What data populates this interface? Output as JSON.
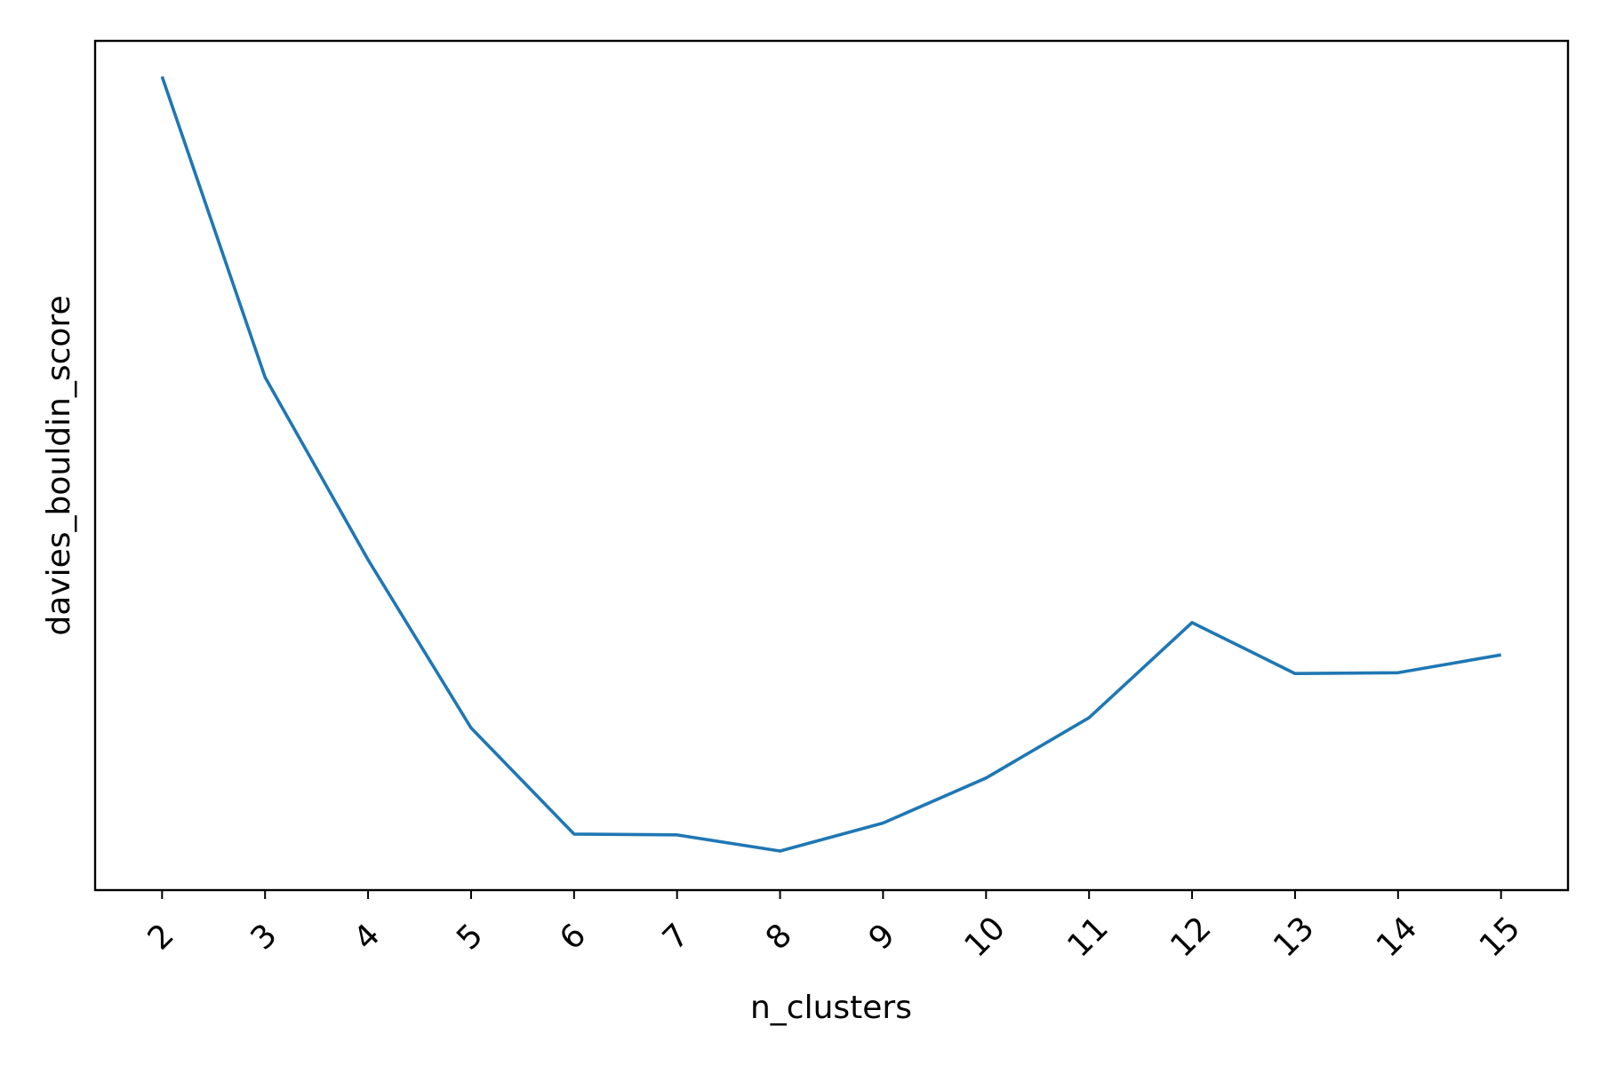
{
  "chart_data": {
    "type": "line",
    "x_label": "n_clusters",
    "y_label": "davies_bouldin_score",
    "x": [
      2,
      3,
      4,
      5,
      6,
      7,
      8,
      9,
      10,
      11,
      12,
      13,
      14,
      15
    ],
    "values": [
      95.8,
      60.4,
      38.9,
      19.1,
      6.6,
      6.5,
      4.6,
      7.9,
      13.2,
      20.3,
      31.5,
      25.5,
      25.6,
      27.7
    ],
    "color": "#1f77b4",
    "xlim": [
      1.35,
      15.65
    ],
    "xticks": [
      2,
      3,
      4,
      5,
      6,
      7,
      8,
      9,
      10,
      11,
      12,
      13,
      14,
      15
    ],
    "ylim": [
      0,
      100
    ],
    "grid": false
  }
}
